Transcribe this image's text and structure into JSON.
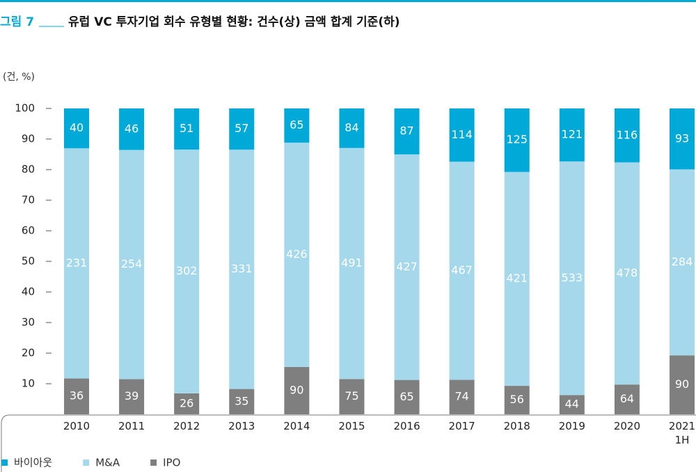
{
  "chart_data": {
    "type": "bar",
    "stacked": "percent",
    "figure_label": "그림 7",
    "title": "유럽 VC 투자기업 회수 유형별 현황: 건수(상) 금액 합계 기준(하)",
    "unit_label": "(건, %)",
    "categories": [
      "2010",
      "2011",
      "2012",
      "2013",
      "2014",
      "2015",
      "2016",
      "2017",
      "2018",
      "2019",
      "2020",
      "2021 1H"
    ],
    "series": [
      {
        "name": "바이아웃",
        "color": "#00a9d8",
        "values": [
          40,
          46,
          51,
          57,
          65,
          84,
          87,
          114,
          125,
          121,
          116,
          93
        ]
      },
      {
        "name": "M&A",
        "color": "#a6d8ec",
        "values": [
          231,
          254,
          302,
          331,
          426,
          491,
          427,
          467,
          421,
          533,
          478,
          284
        ]
      },
      {
        "name": "IPO",
        "color": "#7f7f7f",
        "values": [
          36,
          39,
          26,
          35,
          90,
          75,
          65,
          74,
          56,
          44,
          64,
          90
        ]
      }
    ],
    "ylim": [
      0,
      100
    ],
    "yticks": [
      10,
      20,
      30,
      40,
      50,
      60,
      70,
      80,
      90,
      100
    ]
  }
}
